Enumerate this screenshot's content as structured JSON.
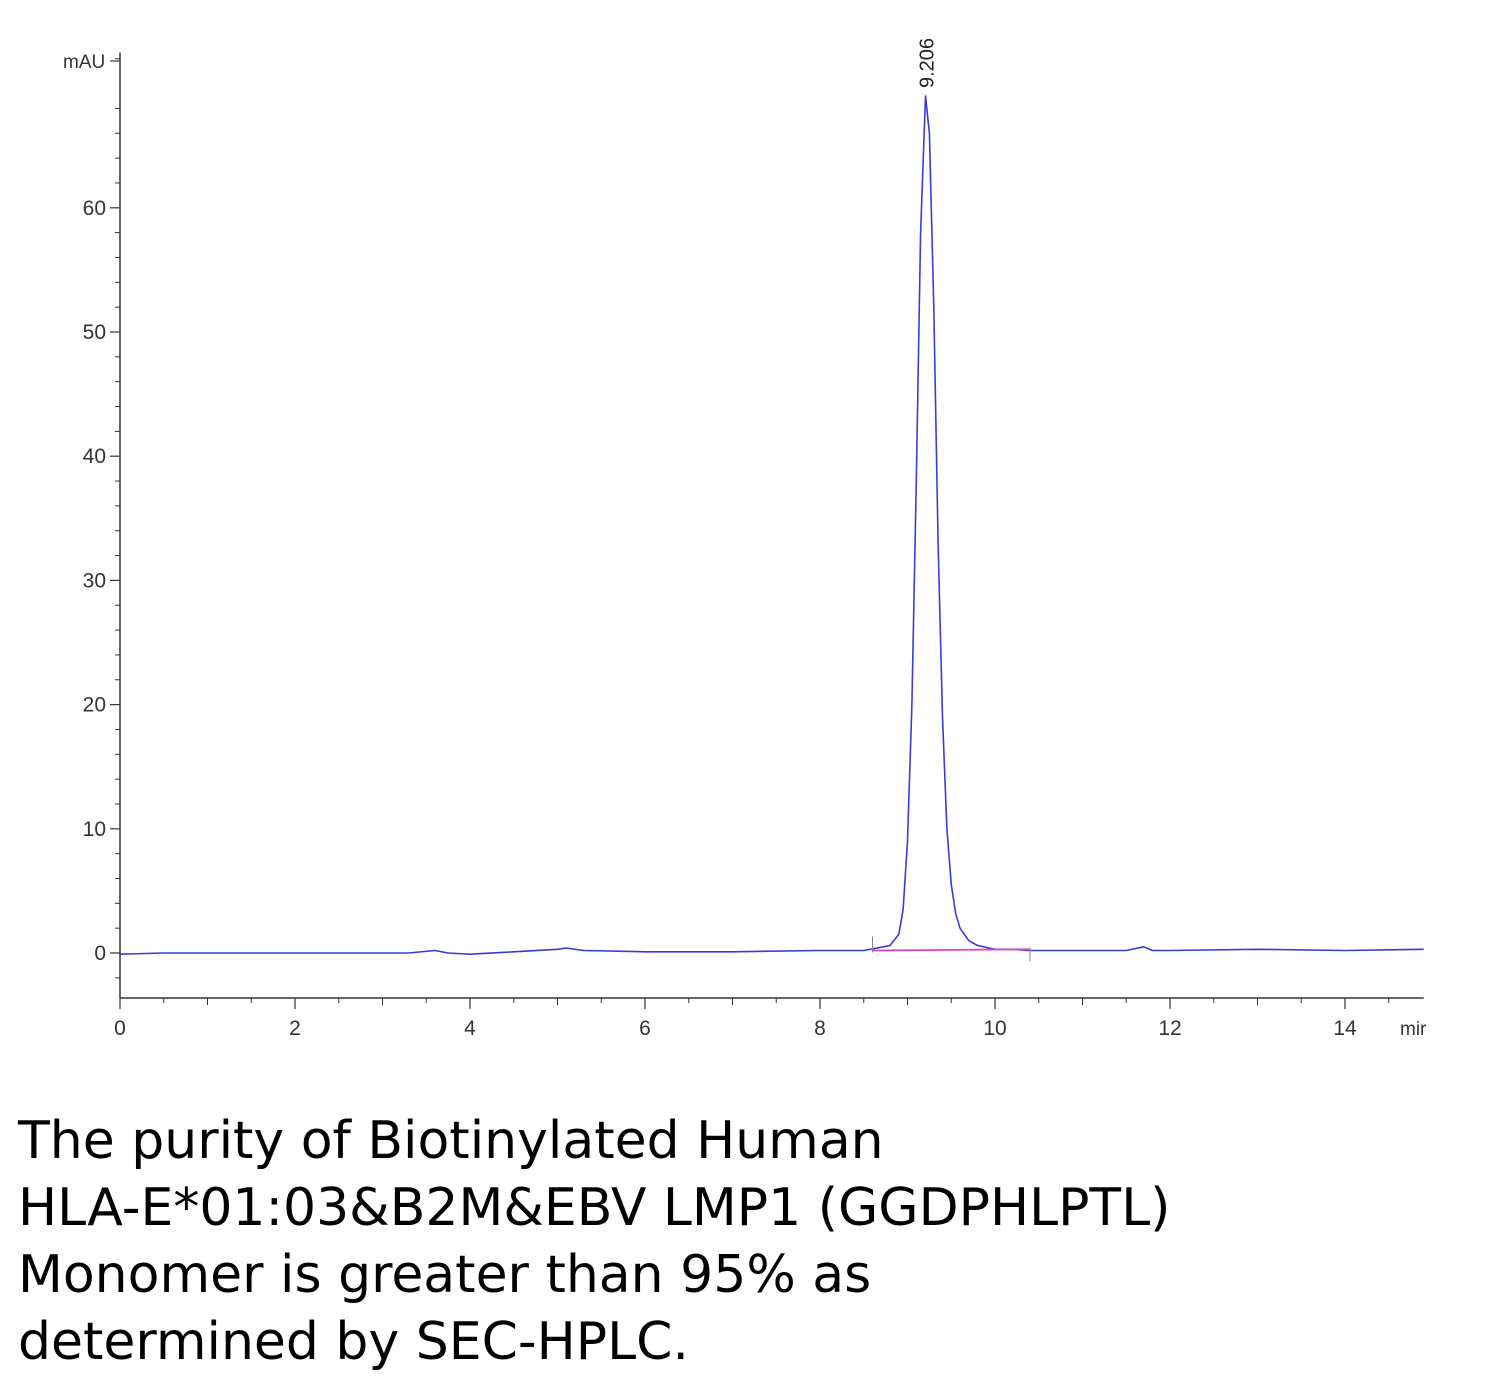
{
  "chart_data": {
    "type": "line",
    "title": "",
    "xlabel": "",
    "ylabel": "",
    "x_unit": "mir",
    "y_unit": "mAU",
    "xlim": [
      0,
      14.9
    ],
    "ylim": [
      -3.5,
      72
    ],
    "x_ticks": [
      0,
      2,
      4,
      6,
      8,
      10,
      12,
      14
    ],
    "y_ticks": [
      0,
      10,
      20,
      30,
      40,
      50,
      60
    ],
    "grid": false,
    "series": [
      {
        "color": "#3b3bd6",
        "x": [
          0.0,
          0.5,
          1.0,
          2.0,
          3.0,
          3.3,
          3.6,
          3.75,
          4.0,
          4.5,
          5.0,
          5.1,
          5.3,
          6.0,
          7.0,
          8.0,
          8.5,
          8.8,
          8.9,
          8.95,
          9.0,
          9.05,
          9.1,
          9.15,
          9.206,
          9.25,
          9.3,
          9.35,
          9.4,
          9.45,
          9.5,
          9.55,
          9.6,
          9.7,
          9.8,
          10.0,
          10.2,
          10.4,
          10.6,
          10.8,
          11.0,
          11.5,
          11.7,
          11.8,
          12.0,
          13.0,
          14.0,
          14.9
        ],
        "y": [
          -0.1,
          0.0,
          0.0,
          0.0,
          0.0,
          0.0,
          0.2,
          0.0,
          -0.1,
          0.1,
          0.3,
          0.4,
          0.2,
          0.1,
          0.1,
          0.2,
          0.2,
          0.6,
          1.5,
          3.5,
          9.0,
          20.0,
          38.0,
          58.0,
          69.0,
          66.0,
          52.0,
          33.0,
          19.0,
          10.0,
          5.5,
          3.2,
          2.0,
          1.0,
          0.6,
          0.3,
          0.3,
          0.2,
          0.2,
          0.2,
          0.2,
          0.2,
          0.5,
          0.2,
          0.2,
          0.3,
          0.2,
          0.3
        ]
      },
      {
        "color": "#e040c0",
        "x": [
          8.6,
          10.4
        ],
        "y": [
          0.2,
          0.3
        ]
      }
    ],
    "annotations": [
      {
        "text": "9.206",
        "x": 9.206,
        "y": 69.0
      }
    ]
  },
  "caption": {
    "lines": [
      "The purity of Biotinylated Human",
      "HLA-E*01:03&B2M&EBV LMP1 (GGDPHLPTL)",
      "Monomer is greater than 95% as",
      "determined by SEC-HPLC."
    ]
  }
}
